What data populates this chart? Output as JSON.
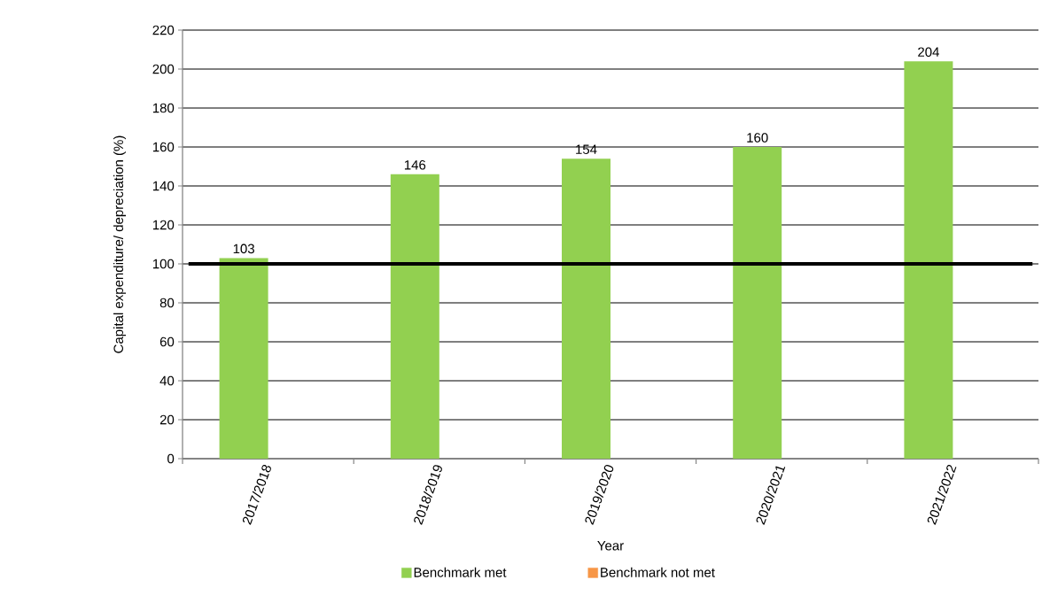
{
  "chart_data": {
    "type": "bar",
    "ylabel": "Capital expenditure/ depreciation (%)",
    "xlabel": "Year",
    "categories": [
      "2017/2018",
      "2018/2019",
      "2019/2020",
      "2020/2021",
      "2021/2022"
    ],
    "series": [
      {
        "name": "Benchmark met",
        "color": "#92d050",
        "values": [
          103,
          146,
          154,
          160,
          204
        ]
      },
      {
        "name": "Benchmark not met",
        "color": "#f79646",
        "values": [
          null,
          null,
          null,
          null,
          null
        ]
      }
    ],
    "ylim": [
      0,
      220
    ],
    "yticks": [
      0,
      20,
      40,
      60,
      80,
      100,
      120,
      140,
      160,
      180,
      200,
      220
    ],
    "grid": "y",
    "legend": "bottom",
    "data_labels": true,
    "ref_lines": [
      {
        "axis": "y",
        "value": 100,
        "color": "#000000"
      }
    ]
  }
}
